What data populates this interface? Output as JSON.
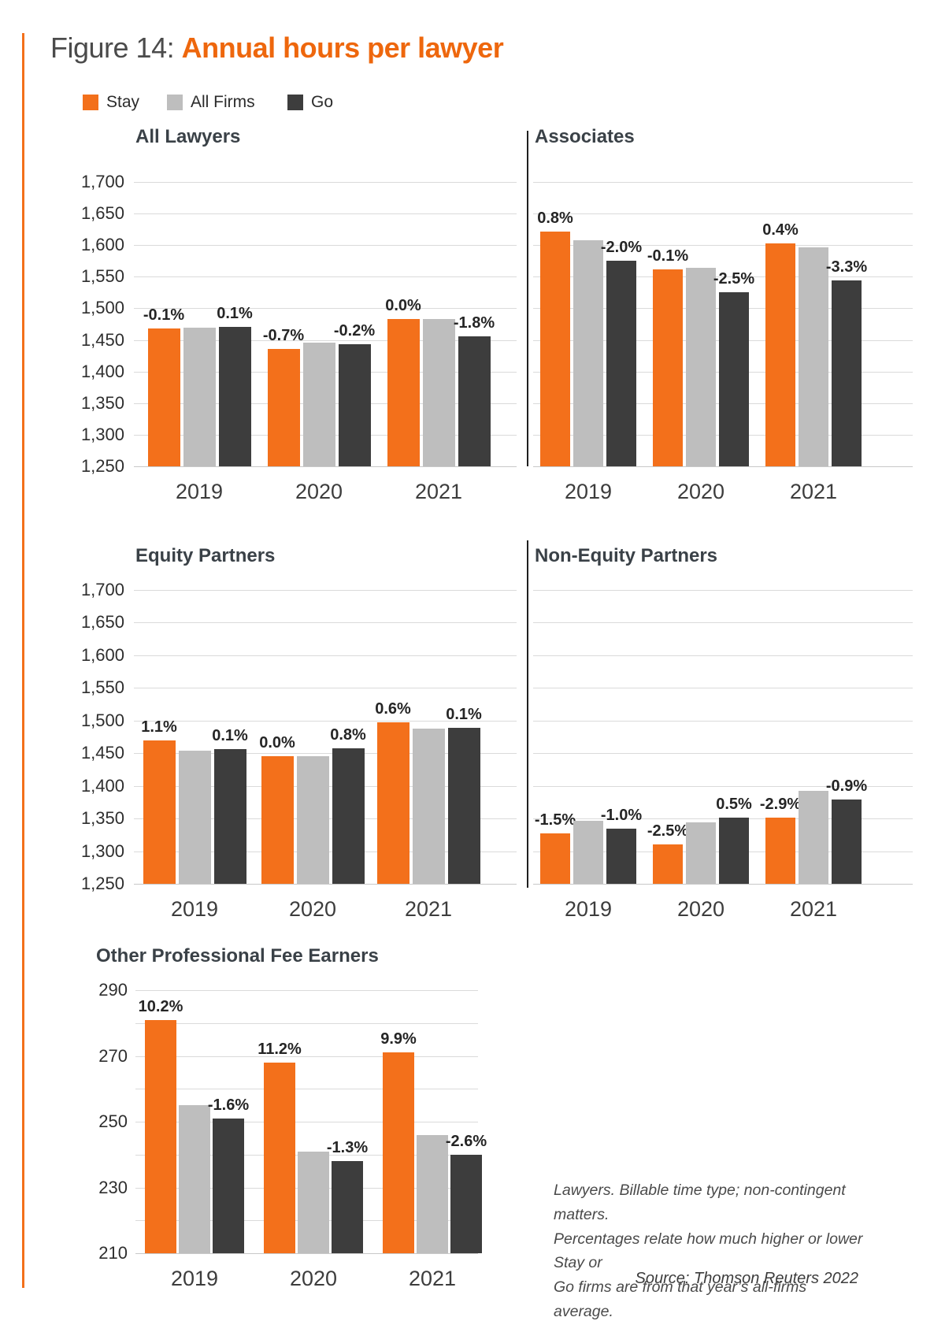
{
  "figure": {
    "label": "Figure 14:",
    "title": "Annual hours per lawyer"
  },
  "colors": {
    "stay": "#F3701B",
    "all_firms": "#BEBEBE",
    "go": "#3D3D3D",
    "accent": "#F3701B",
    "title_highlight": "#EE670D"
  },
  "legend": [
    {
      "name": "Stay",
      "color": "#F3701B"
    },
    {
      "name": "All Firms",
      "color": "#BEBEBE"
    },
    {
      "name": "Go",
      "color": "#3D3D3D"
    }
  ],
  "chart_data": [
    {
      "type": "bar",
      "title": "All Lawyers",
      "categories": [
        "2019",
        "2020",
        "2021"
      ],
      "series": [
        {
          "name": "Stay",
          "values": [
            1468,
            1436,
            1483
          ],
          "labels": [
            "-0.1%",
            "-0.7%",
            "0.0%"
          ]
        },
        {
          "name": "All Firms",
          "values": [
            1470,
            1446,
            1483
          ],
          "labels": [
            null,
            null,
            null
          ]
        },
        {
          "name": "Go",
          "values": [
            1471,
            1443,
            1456
          ],
          "labels": [
            "0.1%",
            "-0.2%",
            "-1.8%"
          ]
        }
      ],
      "ylim": [
        1250,
        1700
      ],
      "grid_step": 50,
      "tick_step": 50,
      "show_y_labels": true,
      "tick_format": "comma",
      "legend_position": "top-left",
      "grid": true
    },
    {
      "type": "bar",
      "title": "Associates",
      "categories": [
        "2019",
        "2020",
        "2021"
      ],
      "series": [
        {
          "name": "Stay",
          "values": [
            1621,
            1562,
            1603
          ],
          "labels": [
            "0.8%",
            "-0.1%",
            "0.4%"
          ]
        },
        {
          "name": "All Firms",
          "values": [
            1608,
            1564,
            1597
          ],
          "labels": [
            null,
            null,
            null
          ]
        },
        {
          "name": "Go",
          "values": [
            1576,
            1525,
            1544
          ],
          "labels": [
            "-2.0%",
            "-2.5%",
            "-3.3%"
          ]
        }
      ],
      "ylim": [
        1250,
        1700
      ],
      "grid_step": 50,
      "tick_step": 50,
      "show_y_labels": false,
      "tick_format": "comma",
      "grid": true
    },
    {
      "type": "bar",
      "title": "Equity Partners",
      "categories": [
        "2019",
        "2020",
        "2021"
      ],
      "series": [
        {
          "name": "Stay",
          "values": [
            1470,
            1445,
            1497
          ],
          "labels": [
            "1.1%",
            "0.0%",
            "0.6%"
          ]
        },
        {
          "name": "All Firms",
          "values": [
            1454,
            1445,
            1488
          ],
          "labels": [
            null,
            null,
            null
          ]
        },
        {
          "name": "Go",
          "values": [
            1456,
            1457,
            1489
          ],
          "labels": [
            "0.1%",
            "0.8%",
            "0.1%"
          ]
        }
      ],
      "ylim": [
        1250,
        1700
      ],
      "grid_step": 50,
      "tick_step": 50,
      "show_y_labels": true,
      "tick_format": "comma",
      "grid": true
    },
    {
      "type": "bar",
      "title": "Non-Equity Partners",
      "categories": [
        "2019",
        "2020",
        "2021"
      ],
      "series": [
        {
          "name": "Stay",
          "values": [
            1327,
            1310,
            1352
          ],
          "labels": [
            "-1.5%",
            "-2.5%",
            "-2.9%"
          ]
        },
        {
          "name": "All Firms",
          "values": [
            1347,
            1344,
            1392
          ],
          "labels": [
            null,
            null,
            null
          ]
        },
        {
          "name": "Go",
          "values": [
            1334,
            1351,
            1379
          ],
          "labels": [
            "-1.0%",
            "0.5%",
            "-0.9%"
          ]
        }
      ],
      "ylim": [
        1250,
        1700
      ],
      "grid_step": 50,
      "tick_step": 50,
      "show_y_labels": false,
      "tick_format": "comma",
      "grid": true
    },
    {
      "type": "bar",
      "title": "Other Professional Fee Earners",
      "categories": [
        "2019",
        "2020",
        "2021"
      ],
      "series": [
        {
          "name": "Stay",
          "values": [
            281,
            268,
            271
          ],
          "labels": [
            "10.2%",
            "11.2%",
            "9.9%"
          ]
        },
        {
          "name": "All Firms",
          "values": [
            255,
            241,
            246
          ],
          "labels": [
            null,
            null,
            null
          ]
        },
        {
          "name": "Go",
          "values": [
            251,
            238,
            240
          ],
          "labels": [
            "-1.6%",
            "-1.3%",
            "-2.6%"
          ]
        }
      ],
      "ylim": [
        210,
        290
      ],
      "grid_step": 10,
      "tick_step": 20,
      "show_y_labels": true,
      "tick_format": "plain",
      "grid": true
    }
  ],
  "footnote": {
    "lines": [
      "Lawyers. Billable time type; non-contingent matters.",
      "Percentages relate how much higher or lower Stay or",
      "Go firms are from that year’s all-firms average."
    ]
  },
  "source": "Source: Thomson Reuters 2022"
}
